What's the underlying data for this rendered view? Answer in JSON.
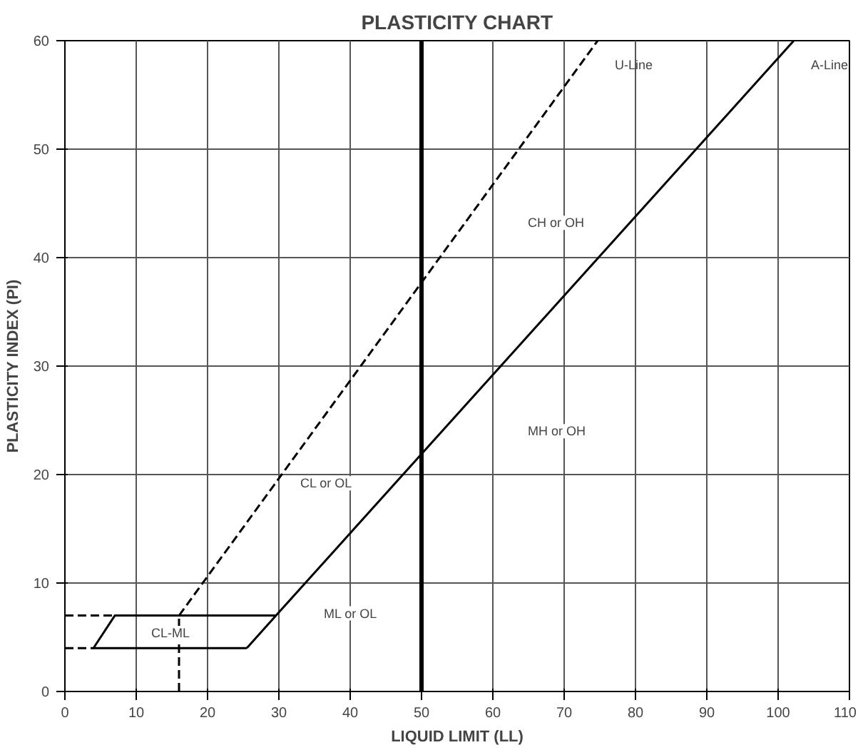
{
  "chart_data": {
    "type": "line",
    "title": "PLASTICITY CHART",
    "xlabel": "LIQUID LIMIT (LL)",
    "ylabel": "PLASTICITY INDEX (PI)",
    "xlim": [
      0,
      110
    ],
    "ylim": [
      0,
      60
    ],
    "xticks": [
      0,
      10,
      20,
      30,
      40,
      50,
      60,
      70,
      80,
      90,
      100,
      110
    ],
    "yticks": [
      0,
      10,
      20,
      30,
      40,
      50,
      60
    ],
    "grid": true,
    "series": [
      {
        "name": "A-Line",
        "color": "#000000",
        "line_style": "solid",
        "x": [
          25.5,
          29.6,
          102.2
        ],
        "values": [
          4,
          7,
          60
        ]
      },
      {
        "name": "U-Line",
        "color": "#000000",
        "line_style": "dashed",
        "x": [
          16,
          74.7
        ],
        "values": [
          7,
          60
        ]
      },
      {
        "color": "#000000",
        "line_style": "solid",
        "x": [
          29.6,
          7,
          4,
          25.5
        ],
        "values": [
          7,
          7,
          4,
          4
        ]
      },
      {
        "color": "#000000",
        "line_style": "dashed",
        "x": [
          0,
          4
        ],
        "values": [
          4,
          4
        ]
      },
      {
        "color": "#000000",
        "line_style": "dashed",
        "x": [
          0,
          7
        ],
        "values": [
          7,
          7
        ]
      },
      {
        "color": "#000000",
        "line_style": "dashed",
        "x": [
          16,
          16
        ],
        "values": [
          0,
          7
        ]
      }
    ],
    "ref_lines": [
      {
        "axis": "x",
        "value": 50,
        "color": "#000000"
      }
    ],
    "annotations": [
      "CH or OH",
      "MH or OH",
      "CL or OL",
      "ML or OL",
      "CL-ML"
    ]
  }
}
